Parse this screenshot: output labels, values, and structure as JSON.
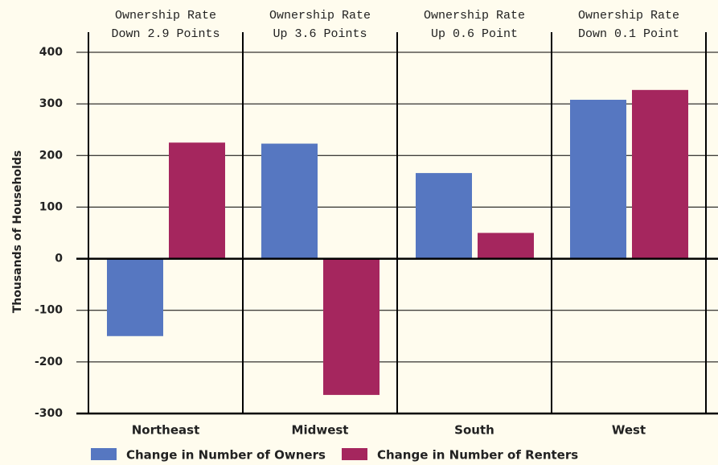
{
  "chart_data": {
    "type": "bar",
    "y_label": "Thousands of Households",
    "categories": [
      "Northeast",
      "Midwest",
      "South",
      "West"
    ],
    "annotations": [
      [
        "Ownership Rate",
        "Down 2.9 Points"
      ],
      [
        "Ownership Rate",
        "Up 3.6 Points"
      ],
      [
        "Ownership Rate",
        "Up 0.6 Point"
      ],
      [
        "Ownership Rate",
        "Down 0.1 Point"
      ]
    ],
    "series": [
      {
        "name": "Change in Number of Owners",
        "color": "#5677c1",
        "values": [
          -150,
          223,
          166,
          308
        ]
      },
      {
        "name": "Change in Number of Renters",
        "color": "#a5265e",
        "values": [
          225,
          -264,
          50,
          327
        ]
      }
    ],
    "ylim": [
      -300,
      400
    ],
    "yticks": [
      400,
      300,
      200,
      100,
      0,
      -100,
      -200,
      -300
    ],
    "grid": true
  }
}
